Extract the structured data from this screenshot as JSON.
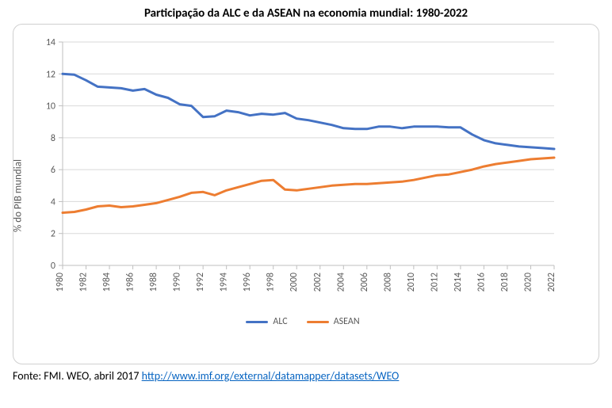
{
  "chart": {
    "type": "line",
    "title": "Participação da ALC e da ASEAN na economia mundial: 1980-2022",
    "title_fontsize": 15,
    "title_fontweight": "bold",
    "ylabel": "% do PIB mundial",
    "label_fontsize": 13,
    "tick_fontsize": 12,
    "background_color": "#ffffff",
    "border_color": "#d0d0d0",
    "grid_color": "#d9d9d9",
    "axis_color": "#bfbfbf",
    "tick_text_color": "#595959",
    "line_width": 3,
    "ylim": [
      0,
      14
    ],
    "ytick_step": 2,
    "years": [
      1980,
      1981,
      1982,
      1983,
      1984,
      1985,
      1986,
      1987,
      1988,
      1989,
      1990,
      1991,
      1992,
      1993,
      1994,
      1995,
      1996,
      1997,
      1998,
      1999,
      2000,
      2001,
      2002,
      2003,
      2004,
      2005,
      2006,
      2007,
      2008,
      2009,
      2010,
      2011,
      2012,
      2013,
      2014,
      2015,
      2016,
      2017,
      2018,
      2019,
      2020,
      2021,
      2022
    ],
    "xtick_step": 2,
    "series": [
      {
        "name": "ALC",
        "color": "#4472c4",
        "values": [
          12.0,
          11.95,
          11.6,
          11.2,
          11.15,
          11.1,
          10.95,
          11.05,
          10.7,
          10.5,
          10.1,
          10.0,
          9.3,
          9.35,
          9.7,
          9.6,
          9.4,
          9.5,
          9.45,
          9.55,
          9.2,
          9.1,
          8.95,
          8.8,
          8.6,
          8.55,
          8.55,
          8.7,
          8.7,
          8.6,
          8.7,
          8.7,
          8.7,
          8.65,
          8.65,
          8.2,
          7.85,
          7.65,
          7.55,
          7.45,
          7.4,
          7.35,
          7.3
        ]
      },
      {
        "name": "ASEAN",
        "color": "#ed7d31",
        "values": [
          3.3,
          3.35,
          3.5,
          3.7,
          3.75,
          3.65,
          3.7,
          3.8,
          3.9,
          4.1,
          4.3,
          4.55,
          4.6,
          4.4,
          4.7,
          4.9,
          5.1,
          5.3,
          5.35,
          4.75,
          4.7,
          4.8,
          4.9,
          5.0,
          5.05,
          5.1,
          5.1,
          5.15,
          5.2,
          5.25,
          5.35,
          5.5,
          5.65,
          5.7,
          5.85,
          6.0,
          6.2,
          6.35,
          6.45,
          6.55,
          6.65,
          6.7,
          6.75
        ]
      }
    ],
    "legend_position": "bottom",
    "xtick_rotation": -90
  },
  "source": {
    "prefix": "Fonte: FMI. WEO, abril 2017 ",
    "url_text": "http://www.imf.org/external/datamapper/datasets/WEO",
    "url_href": "http://www.imf.org/external/datamapper/datasets/WEO",
    "fontsize": 14,
    "text_color": "#000000",
    "link_color": "#0563c1"
  }
}
